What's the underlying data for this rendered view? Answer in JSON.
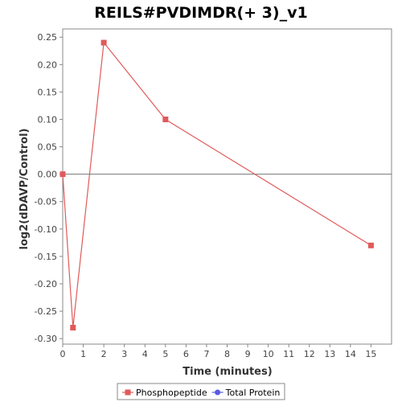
{
  "chart_data": {
    "type": "line",
    "title": "REILS#PVDIMDR(+ 3)_v1",
    "xlabel": "Time (minutes)",
    "ylabel": "log2(dDAVP/Control)",
    "xlim": [
      0,
      16
    ],
    "ylim": [
      -0.31,
      0.265
    ],
    "xticks": [
      0,
      1,
      2,
      3,
      4,
      5,
      6,
      7,
      8,
      9,
      10,
      11,
      12,
      13,
      14,
      15
    ],
    "yticks": [
      -0.3,
      -0.25,
      -0.2,
      -0.15,
      -0.1,
      -0.05,
      0.0,
      0.05,
      0.1,
      0.15,
      0.2,
      0.25
    ],
    "ytick_labels": [
      "-0.30",
      "-0.25",
      "-0.20",
      "-0.15",
      "-0.10",
      "-0.05",
      "0.00",
      "0.05",
      "0.10",
      "0.15",
      "0.20",
      "0.25"
    ],
    "zero_line": true,
    "grid": false,
    "legend_position": "bottom",
    "series": [
      {
        "name": "Phosphopeptide",
        "color": "#e05a5a",
        "marker": "square",
        "x": [
          0,
          0.5,
          2,
          5,
          15
        ],
        "y": [
          0.0,
          -0.28,
          0.24,
          0.1,
          -0.13
        ]
      },
      {
        "name": "Total Protein",
        "color": "#5a5ae0",
        "marker": "circle",
        "x": [],
        "y": []
      }
    ]
  }
}
